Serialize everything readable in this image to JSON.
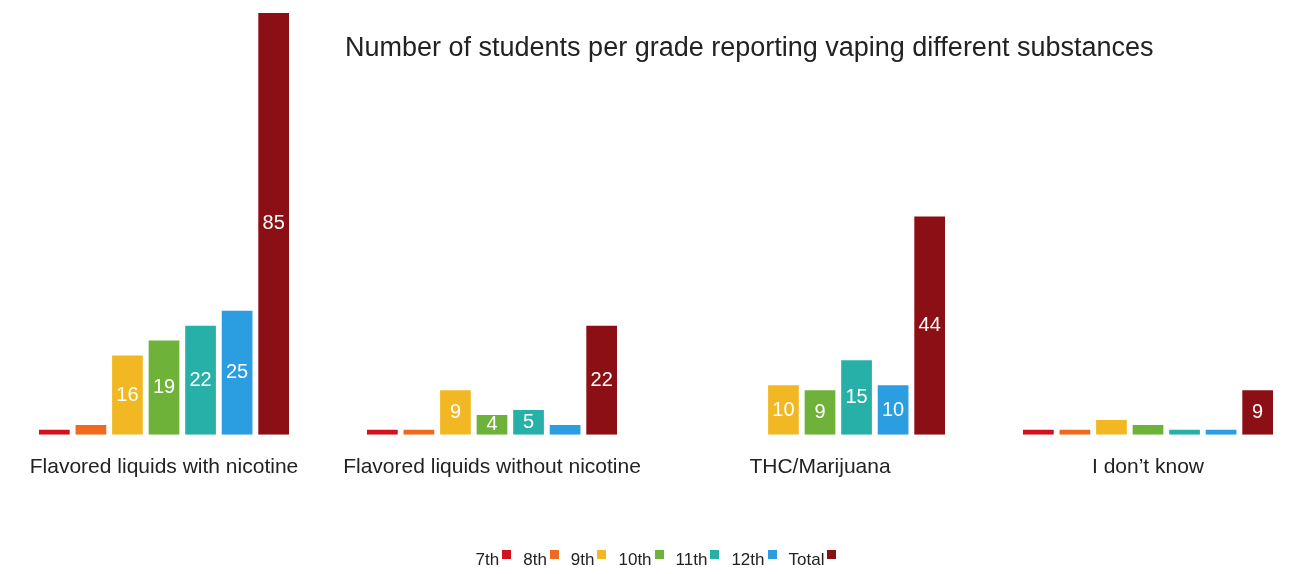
{
  "chart_data": {
    "type": "bar",
    "title": "Number of students per grade reporting vaping different substances",
    "categories": [
      "Flavored liquids with nicotine",
      "Flavored liquids without nicotine",
      "THC/Marijuana",
      "I don’t know"
    ],
    "ylim": [
      0,
      85
    ],
    "legend": "bottom",
    "grid": false,
    "series": [
      {
        "name": "7th",
        "color": "#d0121f",
        "values": [
          1,
          1,
          null,
          1
        ],
        "value_labels": [
          null,
          null,
          null,
          null
        ]
      },
      {
        "name": "8th",
        "color": "#ee6a1e",
        "values": [
          2,
          1,
          null,
          1
        ],
        "value_labels": [
          null,
          null,
          null,
          null
        ]
      },
      {
        "name": "9th",
        "color": "#f2b824",
        "values": [
          16,
          9,
          10,
          3
        ],
        "value_labels": [
          "16",
          "9",
          "10",
          null
        ]
      },
      {
        "name": "10th",
        "color": "#6fb23a",
        "values": [
          19,
          4,
          9,
          2
        ],
        "value_labels": [
          "19",
          "4",
          "9",
          null
        ]
      },
      {
        "name": "11th",
        "color": "#27b0a8",
        "values": [
          22,
          5,
          15,
          1
        ],
        "value_labels": [
          "22",
          "5",
          "15",
          null
        ]
      },
      {
        "name": "12th",
        "color": "#2a9ee0",
        "values": [
          25,
          2,
          10,
          1
        ],
        "value_labels": [
          "25",
          null,
          "10",
          null
        ]
      },
      {
        "name": "Total",
        "color": "#8b0f14",
        "values": [
          85,
          22,
          44,
          9
        ],
        "value_labels": [
          "85",
          "22",
          "44",
          "9"
        ]
      }
    ]
  }
}
